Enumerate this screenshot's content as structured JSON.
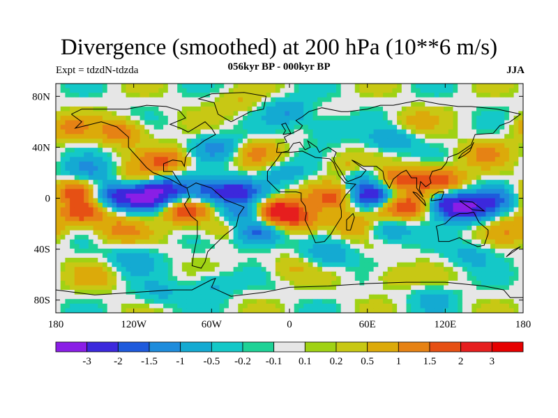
{
  "chart_data": {
    "type": "heatmap",
    "title": "Divergence (smoothed) at 200 hPa (10**6 m/s)",
    "subtitle": "056kyr BP - 000kyr BP",
    "left_label": "Expt = tdzdN-tdzda",
    "right_label": "JJA",
    "xlim": [
      -180,
      180
    ],
    "ylim": [
      -90,
      90
    ],
    "x_ticks": [
      {
        "value": -180,
        "label": "180"
      },
      {
        "value": -120,
        "label": "120W"
      },
      {
        "value": -60,
        "label": "60W"
      },
      {
        "value": 0,
        "label": "0"
      },
      {
        "value": 60,
        "label": "60E"
      },
      {
        "value": 120,
        "label": "120E"
      },
      {
        "value": 180,
        "label": "180"
      }
    ],
    "y_ticks": [
      {
        "value": 80,
        "label": "80N"
      },
      {
        "value": 40,
        "label": "40N"
      },
      {
        "value": 0,
        "label": "0"
      },
      {
        "value": -40,
        "label": "40S"
      },
      {
        "value": -80,
        "label": "80S"
      }
    ],
    "colorbar": {
      "levels": [
        "-3",
        "-2",
        "-1.5",
        "-1",
        "-0.5",
        "-0.2",
        "-0.1",
        "0.1",
        "0.2",
        "0.5",
        "1",
        "1.5",
        "2",
        "3"
      ],
      "colors": [
        "#8a1ee6",
        "#3c28dc",
        "#1e5adc",
        "#1e8cdc",
        "#14aad2",
        "#14c8c8",
        "#1ed296",
        "#e6e6e6",
        "#a0d214",
        "#c8c814",
        "#dcaa0a",
        "#e68214",
        "#e65014",
        "#e61e1e",
        "#e60000"
      ]
    },
    "features": [
      {
        "lon": -165,
        "lat": 5,
        "value": 1.6
      },
      {
        "lon": -160,
        "lat": -12,
        "value": 1.8
      },
      {
        "lon": -130,
        "lat": -25,
        "value": 1.2
      },
      {
        "lon": -135,
        "lat": 2,
        "value": -2.0
      },
      {
        "lon": -155,
        "lat": 22,
        "value": -1.0
      },
      {
        "lon": -110,
        "lat": 0,
        "value": -2.5
      },
      {
        "lon": -95,
        "lat": 8,
        "value": -1.8
      },
      {
        "lon": -65,
        "lat": 5,
        "value": -1.6
      },
      {
        "lon": -40,
        "lat": 5,
        "value": -2.2
      },
      {
        "lon": -115,
        "lat": 17,
        "value": 0.8
      },
      {
        "lon": -80,
        "lat": -10,
        "value": 1.9
      },
      {
        "lon": -95,
        "lat": 30,
        "value": 1.5
      },
      {
        "lon": -130,
        "lat": 52,
        "value": 1.4
      },
      {
        "lon": -170,
        "lat": 55,
        "value": 1.0
      },
      {
        "lon": -55,
        "lat": 40,
        "value": -1.2
      },
      {
        "lon": -25,
        "lat": 35,
        "value": 1.0
      },
      {
        "lon": -10,
        "lat": -10,
        "value": 2.8
      },
      {
        "lon": 10,
        "lat": -18,
        "value": 1.3
      },
      {
        "lon": -35,
        "lat": -12,
        "value": -1.3
      },
      {
        "lon": -25,
        "lat": -28,
        "value": -2.0
      },
      {
        "lon": -50,
        "lat": -25,
        "value": 0.8
      },
      {
        "lon": -5,
        "lat": 20,
        "value": -0.8
      },
      {
        "lon": 25,
        "lat": 5,
        "value": 0.5
      },
      {
        "lon": 40,
        "lat": 0,
        "value": 1.6
      },
      {
        "lon": 60,
        "lat": 2,
        "value": -2.8
      },
      {
        "lon": 55,
        "lat": 20,
        "value": -1.0
      },
      {
        "lon": 45,
        "lat": 25,
        "value": 1.0
      },
      {
        "lon": 85,
        "lat": 15,
        "value": 1.7
      },
      {
        "lon": 80,
        "lat": -8,
        "value": 1.5
      },
      {
        "lon": 75,
        "lat": -25,
        "value": -1.2
      },
      {
        "lon": 50,
        "lat": -22,
        "value": 1.0
      },
      {
        "lon": 100,
        "lat": -5,
        "value": 1.4
      },
      {
        "lon": 120,
        "lat": -5,
        "value": -2.6
      },
      {
        "lon": 140,
        "lat": -8,
        "value": -2.2
      },
      {
        "lon": 115,
        "lat": 15,
        "value": 1.9
      },
      {
        "lon": 150,
        "lat": 35,
        "value": 1.0
      },
      {
        "lon": 160,
        "lat": 0,
        "value": -1.1
      },
      {
        "lon": 170,
        "lat": -25,
        "value": 0.8
      },
      {
        "lon": 80,
        "lat": 45,
        "value": -1.0
      },
      {
        "lon": 30,
        "lat": 55,
        "value": -0.7
      },
      {
        "lon": 95,
        "lat": 60,
        "value": 0.6
      },
      {
        "lon": -40,
        "lat": 75,
        "value": 0.5
      },
      {
        "lon": 0,
        "lat": 68,
        "value": -1.0
      },
      {
        "lon": 30,
        "lat": -45,
        "value": -0.9
      },
      {
        "lon": -120,
        "lat": -48,
        "value": -0.9
      },
      {
        "lon": 140,
        "lat": -45,
        "value": -0.7
      },
      {
        "lon": -150,
        "lat": -62,
        "value": 0.6
      },
      {
        "lon": 80,
        "lat": -62,
        "value": 0.6
      },
      {
        "lon": -60,
        "lat": -68,
        "value": -0.7
      },
      {
        "lon": 0,
        "lat": -55,
        "value": 0.5
      },
      {
        "lon": -100,
        "lat": -75,
        "value": -0.6
      },
      {
        "lon": 110,
        "lat": -78,
        "value": -0.6
      }
    ],
    "grid": false,
    "legend": "bottom"
  }
}
